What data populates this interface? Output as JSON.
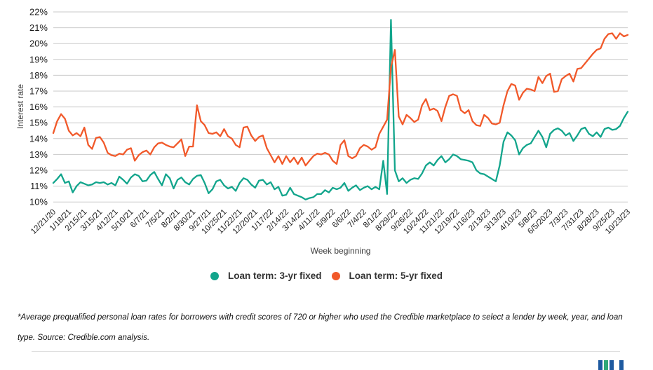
{
  "chart_data": {
    "type": "line",
    "title": "",
    "xlabel": "Week beginning",
    "ylabel": "Interest rate",
    "ylim": [
      10,
      22
    ],
    "grid": "horizontal",
    "legend_position": "bottom-center",
    "y_tick_labels": [
      "10%",
      "11%",
      "12%",
      "13%",
      "14%",
      "15%",
      "16%",
      "17%",
      "18%",
      "19%",
      "20%",
      "21%",
      "22%"
    ],
    "x_tick_interval_weeks": 4,
    "x_tick_labels": [
      "12/21/20",
      "1/18/21",
      "2/15/21",
      "3/15/21",
      "4/12/21",
      "5/10/21",
      "6/7/21",
      "7/5/21",
      "8/2/21",
      "8/30/21",
      "9/27/21",
      "10/25/21",
      "11/22/21",
      "12/20/21",
      "1/17/22",
      "2/14/22",
      "3/14/22",
      "4/11/22",
      "5/9/22",
      "6/6/22",
      "7/4/22",
      "8/1/22",
      "8/29/22",
      "9/26/22",
      "10/24/22",
      "11/21/22",
      "12/19/22",
      "1/16/23",
      "2/13/23",
      "3/13/23",
      "4/10/23",
      "5/8/23",
      "6/5/2023",
      "7/3/23",
      "7/31/23",
      "8/28/23",
      "9/25/23",
      "10/23/23"
    ],
    "series": [
      {
        "name": "Loan term: 3-yr fixed",
        "color": "#12A58C",
        "values": [
          11.2,
          11.45,
          11.75,
          11.2,
          11.3,
          10.6,
          11.0,
          11.25,
          11.15,
          11.05,
          11.1,
          11.25,
          11.2,
          11.25,
          11.1,
          11.2,
          11.05,
          11.6,
          11.4,
          11.15,
          11.55,
          11.75,
          11.65,
          11.3,
          11.35,
          11.7,
          11.9,
          11.45,
          11.05,
          11.75,
          11.5,
          10.85,
          11.4,
          11.55,
          11.25,
          11.1,
          11.45,
          11.65,
          11.7,
          11.2,
          10.55,
          10.8,
          11.3,
          11.4,
          11.05,
          10.85,
          10.95,
          10.7,
          11.2,
          11.5,
          11.4,
          11.1,
          10.9,
          11.35,
          11.4,
          11.1,
          11.25,
          10.8,
          10.95,
          10.4,
          10.45,
          10.9,
          10.5,
          10.4,
          10.3,
          10.15,
          10.25,
          10.3,
          10.5,
          10.5,
          10.75,
          10.6,
          10.9,
          10.8,
          10.9,
          11.2,
          10.7,
          10.9,
          11.05,
          10.75,
          10.9,
          11.0,
          10.8,
          10.95,
          10.8,
          12.6,
          10.5,
          21.5,
          12.0,
          11.3,
          11.5,
          11.2,
          11.4,
          11.5,
          11.45,
          11.8,
          12.3,
          12.5,
          12.3,
          12.65,
          12.9,
          12.5,
          12.7,
          13.0,
          12.9,
          12.7,
          12.65,
          12.6,
          12.5,
          12.0,
          11.8,
          11.75,
          11.6,
          11.45,
          11.3,
          12.3,
          13.8,
          14.4,
          14.2,
          13.9,
          13.0,
          13.4,
          13.6,
          13.7,
          14.1,
          14.5,
          14.1,
          13.45,
          14.3,
          14.55,
          14.65,
          14.5,
          14.2,
          14.35,
          13.85,
          14.2,
          14.6,
          14.7,
          14.3,
          14.15,
          14.4,
          14.1,
          14.6,
          14.7,
          14.55,
          14.6,
          14.8,
          15.3,
          15.7
        ]
      },
      {
        "name": "Loan term: 5-yr fixed",
        "color": "#F1592A",
        "values": [
          14.35,
          15.1,
          15.55,
          15.25,
          14.5,
          14.2,
          14.35,
          14.15,
          14.7,
          13.6,
          13.35,
          14.05,
          14.1,
          13.75,
          13.1,
          12.95,
          12.9,
          13.05,
          13.0,
          13.3,
          13.4,
          12.6,
          12.95,
          13.15,
          13.25,
          13.0,
          13.45,
          13.7,
          13.75,
          13.6,
          13.5,
          13.45,
          13.7,
          13.95,
          12.9,
          13.5,
          13.5,
          16.1,
          15.1,
          14.85,
          14.35,
          14.3,
          14.4,
          14.15,
          14.6,
          14.15,
          14.0,
          13.6,
          13.45,
          14.7,
          14.75,
          14.2,
          13.85,
          14.1,
          14.2,
          13.4,
          12.95,
          12.5,
          12.9,
          12.4,
          12.9,
          12.5,
          12.8,
          12.4,
          12.8,
          12.3,
          12.6,
          12.9,
          13.05,
          13.0,
          13.1,
          13.0,
          12.6,
          12.4,
          13.6,
          13.9,
          12.9,
          12.75,
          12.9,
          13.4,
          13.6,
          13.5,
          13.3,
          13.45,
          14.3,
          14.75,
          15.2,
          18.5,
          19.6,
          15.4,
          14.9,
          15.5,
          15.3,
          15.05,
          15.2,
          16.1,
          16.5,
          15.8,
          15.9,
          15.75,
          15.1,
          16.0,
          16.7,
          16.8,
          16.7,
          15.8,
          15.6,
          15.8,
          15.1,
          14.85,
          14.8,
          15.5,
          15.3,
          14.95,
          14.9,
          15.0,
          16.1,
          17.0,
          17.45,
          17.35,
          16.45,
          16.9,
          17.15,
          17.1,
          17.0,
          17.9,
          17.5,
          17.95,
          18.1,
          16.95,
          17.0,
          17.75,
          17.95,
          18.1,
          17.6,
          18.4,
          18.45,
          18.75,
          19.05,
          19.35,
          19.6,
          19.7,
          20.3,
          20.6,
          20.65,
          20.3,
          20.65,
          20.45,
          20.55
        ]
      }
    ]
  },
  "footnote": "*Average prequalified personal loan rates for borrowers with credit scores of 720 or higher who used the Credible marketplace to select a lender by week, year, and loan type. Source: Credible.com analysis.",
  "footer": {
    "divider_color": "#dedede",
    "logo_bar_colors": [
      "#1e5aa0",
      "#2fa878",
      "#1e5aa0",
      "#1e5aa0"
    ]
  }
}
